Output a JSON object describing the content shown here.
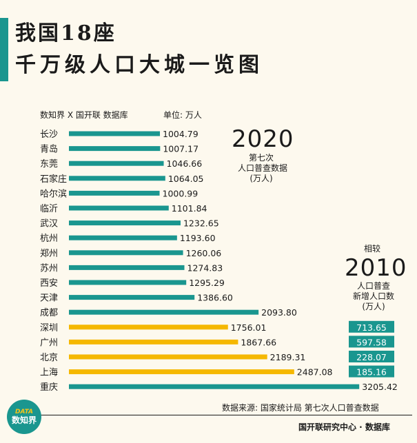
{
  "header": {
    "title_line1": "我国18座",
    "title_line2": "千万级人口大城一览图",
    "source_line": "数知界 X 国开联  数据库",
    "unit_line": "单位:  万人"
  },
  "annotations": {
    "year2020": "2020",
    "year2020_note1": "第七次",
    "year2020_note2": "人口普查数据",
    "year2020_note3": "(万人)",
    "compare_label": "相较",
    "year2010": "2010",
    "year2010_note1": "人口普查",
    "year2010_note2": "新增人口数",
    "year2010_note3": "(万人)"
  },
  "footer": {
    "data_source": "数据来源:  国家统计局 第七次人口普查数据",
    "credit": "国开联研究中心 · 数据库",
    "logo_top": "DATA",
    "logo_main": "数知界"
  },
  "colors": {
    "teal": "#1a968f",
    "gold": "#f5b800",
    "background": "#fdf9ee"
  },
  "chart_data": {
    "type": "bar",
    "orientation": "horizontal",
    "categories": [
      "长沙",
      "青岛",
      "东莞",
      "石家庄",
      "哈尔滨",
      "临沂",
      "武汉",
      "杭州",
      "郑州",
      "苏州",
      "西安",
      "天津",
      "成都",
      "深圳",
      "广州",
      "北京",
      "上海",
      "重庆"
    ],
    "values": [
      1004.79,
      1007.17,
      1046.66,
      1064.05,
      1000.99,
      1101.84,
      1232.65,
      1193.6,
      1260.06,
      1274.83,
      1295.29,
      1386.6,
      2093.8,
      1756.01,
      1867.66,
      2189.31,
      2487.08,
      3205.42
    ],
    "value_labels": [
      "1004.79",
      "1007.17",
      "1046.66",
      "1064.05",
      "1000.99",
      "1101.84",
      "1232.65",
      "1193.60",
      "1260.06",
      "1274.83",
      "1295.29",
      "1386.60",
      "2093.80",
      "1756.01",
      "1867.66",
      "2189.31",
      "2487.08",
      "3205.42"
    ],
    "highlighted": [
      false,
      false,
      false,
      false,
      false,
      false,
      false,
      false,
      false,
      false,
      false,
      false,
      false,
      true,
      true,
      true,
      true,
      false
    ],
    "increase_2010": [
      {
        "city": "深圳",
        "value": 713.65,
        "label": "713.65"
      },
      {
        "city": "广州",
        "value": 597.58,
        "label": "597.58"
      },
      {
        "city": "北京",
        "value": 228.07,
        "label": "228.07"
      },
      {
        "city": "上海",
        "value": 185.16,
        "label": "185.16"
      }
    ]
  }
}
